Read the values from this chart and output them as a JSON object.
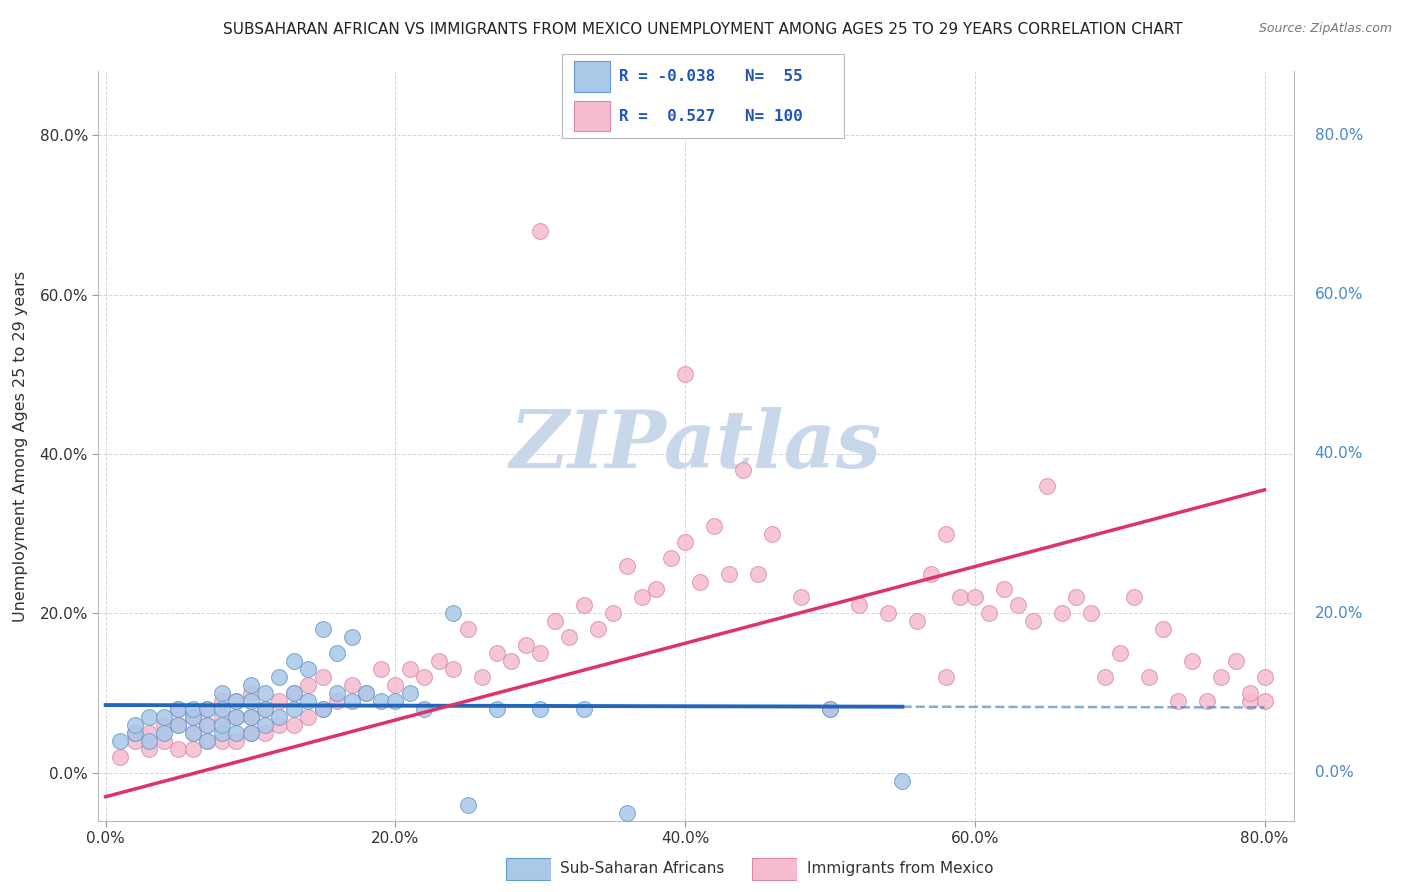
{
  "title": "SUBSAHARAN AFRICAN VS IMMIGRANTS FROM MEXICO UNEMPLOYMENT AMONG AGES 25 TO 29 YEARS CORRELATION CHART",
  "source": "Source: ZipAtlas.com",
  "ylabel": "Unemployment Among Ages 25 to 29 years",
  "xlim": [
    -0.005,
    0.82
  ],
  "ylim": [
    -0.06,
    0.88
  ],
  "xticks": [
    0.0,
    0.2,
    0.4,
    0.6,
    0.8
  ],
  "yticks": [
    0.0,
    0.2,
    0.4,
    0.6,
    0.8
  ],
  "xtick_labels": [
    "0.0%",
    "20.0%",
    "40.0%",
    "60.0%",
    "80.0%"
  ],
  "ytick_labels": [
    "0.0%",
    "20.0%",
    "40.0%",
    "60.0%",
    "80.0%"
  ],
  "right_ytick_labels": [
    "80.0%",
    "60.0%",
    "40.0%",
    "20.0%",
    "0.0%"
  ],
  "blue_R": -0.038,
  "blue_N": 55,
  "pink_R": 0.527,
  "pink_N": 100,
  "blue_color": "#aac8e8",
  "pink_color": "#f5bcd0",
  "blue_edge_color": "#6699cc",
  "pink_edge_color": "#dd88aa",
  "blue_line_color": "#2266bb",
  "pink_line_color": "#dd3366",
  "grid_color": "#cccccc",
  "watermark_text": "ZIPatlas",
  "watermark_color": "#c8d8ea",
  "background_color": "#ffffff",
  "blue_scatter_x": [
    0.01,
    0.02,
    0.02,
    0.03,
    0.03,
    0.04,
    0.04,
    0.05,
    0.05,
    0.06,
    0.06,
    0.06,
    0.07,
    0.07,
    0.07,
    0.08,
    0.08,
    0.08,
    0.08,
    0.09,
    0.09,
    0.09,
    0.1,
    0.1,
    0.1,
    0.1,
    0.11,
    0.11,
    0.11,
    0.12,
    0.12,
    0.13,
    0.13,
    0.13,
    0.14,
    0.14,
    0.15,
    0.15,
    0.16,
    0.16,
    0.17,
    0.17,
    0.18,
    0.19,
    0.2,
    0.21,
    0.22,
    0.24,
    0.25,
    0.27,
    0.3,
    0.33,
    0.36,
    0.5,
    0.55
  ],
  "blue_scatter_y": [
    0.04,
    0.05,
    0.06,
    0.04,
    0.07,
    0.05,
    0.07,
    0.06,
    0.08,
    0.05,
    0.07,
    0.08,
    0.04,
    0.06,
    0.08,
    0.05,
    0.06,
    0.08,
    0.1,
    0.05,
    0.07,
    0.09,
    0.05,
    0.07,
    0.09,
    0.11,
    0.06,
    0.08,
    0.1,
    0.07,
    0.12,
    0.08,
    0.1,
    0.14,
    0.09,
    0.13,
    0.08,
    0.18,
    0.1,
    0.15,
    0.09,
    0.17,
    0.1,
    0.09,
    0.09,
    0.1,
    0.08,
    0.2,
    -0.04,
    0.08,
    0.08,
    0.08,
    -0.05,
    0.08,
    -0.01
  ],
  "pink_scatter_x": [
    0.01,
    0.02,
    0.02,
    0.03,
    0.03,
    0.04,
    0.04,
    0.05,
    0.05,
    0.05,
    0.06,
    0.06,
    0.06,
    0.07,
    0.07,
    0.07,
    0.08,
    0.08,
    0.08,
    0.09,
    0.09,
    0.09,
    0.1,
    0.1,
    0.1,
    0.11,
    0.11,
    0.12,
    0.12,
    0.13,
    0.13,
    0.14,
    0.14,
    0.15,
    0.15,
    0.16,
    0.17,
    0.18,
    0.19,
    0.2,
    0.21,
    0.22,
    0.23,
    0.24,
    0.25,
    0.26,
    0.27,
    0.28,
    0.29,
    0.3,
    0.31,
    0.32,
    0.33,
    0.34,
    0.35,
    0.36,
    0.37,
    0.38,
    0.39,
    0.4,
    0.41,
    0.42,
    0.43,
    0.44,
    0.45,
    0.46,
    0.48,
    0.5,
    0.52,
    0.54,
    0.56,
    0.57,
    0.58,
    0.59,
    0.6,
    0.61,
    0.62,
    0.63,
    0.64,
    0.65,
    0.66,
    0.67,
    0.68,
    0.69,
    0.7,
    0.71,
    0.72,
    0.73,
    0.74,
    0.75,
    0.76,
    0.77,
    0.78,
    0.79,
    0.79,
    0.8,
    0.8,
    0.58,
    0.4,
    0.3
  ],
  "pink_scatter_y": [
    0.02,
    0.04,
    0.05,
    0.03,
    0.05,
    0.04,
    0.06,
    0.03,
    0.06,
    0.08,
    0.03,
    0.05,
    0.07,
    0.04,
    0.06,
    0.08,
    0.04,
    0.07,
    0.09,
    0.04,
    0.07,
    0.09,
    0.05,
    0.07,
    0.1,
    0.05,
    0.08,
    0.06,
    0.09,
    0.06,
    0.1,
    0.07,
    0.11,
    0.08,
    0.12,
    0.09,
    0.11,
    0.1,
    0.13,
    0.11,
    0.13,
    0.12,
    0.14,
    0.13,
    0.18,
    0.12,
    0.15,
    0.14,
    0.16,
    0.15,
    0.19,
    0.17,
    0.21,
    0.18,
    0.2,
    0.26,
    0.22,
    0.23,
    0.27,
    0.29,
    0.24,
    0.31,
    0.25,
    0.38,
    0.25,
    0.3,
    0.22,
    0.08,
    0.21,
    0.2,
    0.19,
    0.25,
    0.12,
    0.22,
    0.22,
    0.2,
    0.23,
    0.21,
    0.19,
    0.36,
    0.2,
    0.22,
    0.2,
    0.12,
    0.15,
    0.22,
    0.12,
    0.18,
    0.09,
    0.14,
    0.09,
    0.12,
    0.14,
    0.09,
    0.1,
    0.12,
    0.09,
    0.3,
    0.5,
    0.68
  ],
  "blue_line_x0": 0.0,
  "blue_line_x1": 0.8,
  "blue_line_y0": 0.085,
  "blue_line_y1": 0.082,
  "blue_line_solid_end": 0.55,
  "pink_line_x0": 0.0,
  "pink_line_x1": 0.8,
  "pink_line_y0": -0.03,
  "pink_line_y1": 0.355
}
